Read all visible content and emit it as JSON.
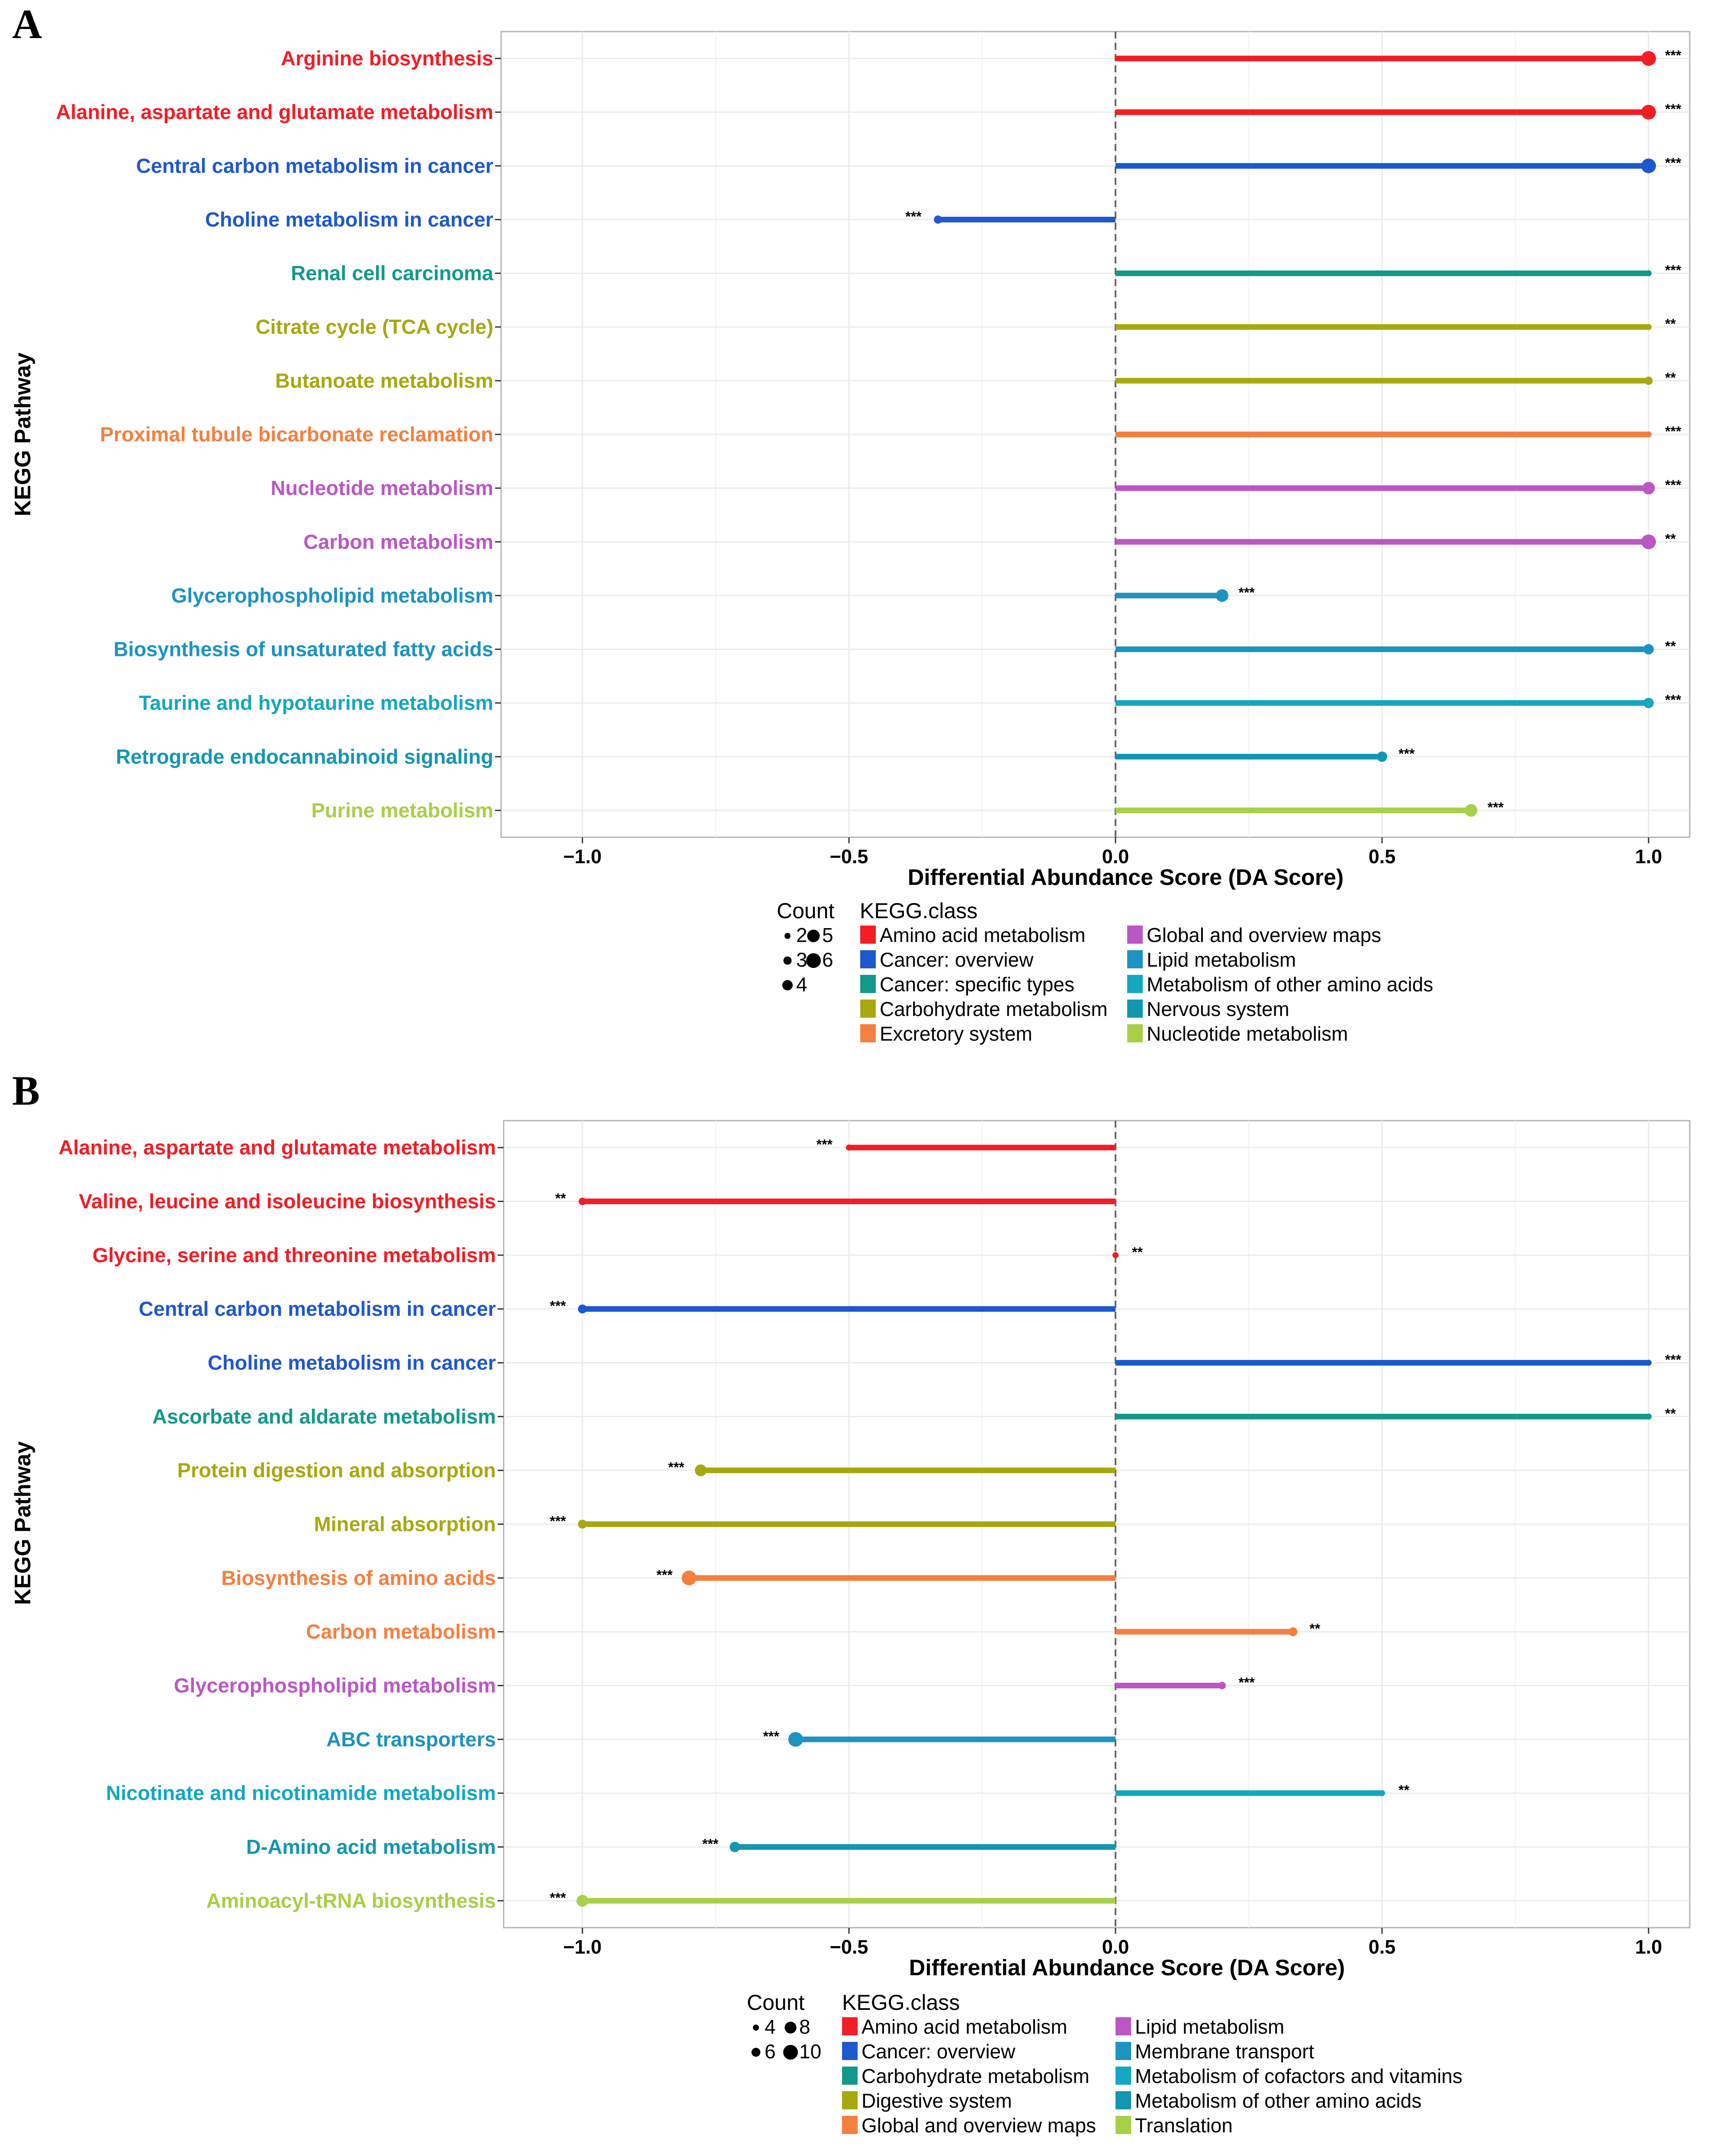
{
  "chart_data": [
    {
      "type": "lollipop",
      "panel": "A",
      "xlabel": "Differential Abundance Score (DA Score)",
      "ylabel": "KEGG Pathway",
      "xlim": [
        -1.15,
        1.15
      ],
      "xticks": [
        -1.0,
        -0.5,
        0.0,
        0.5,
        1.0
      ],
      "xtick_labels": [
        "−1.0",
        "−0.5",
        "0.0",
        "0.5",
        "1.0"
      ],
      "grid": true,
      "rows": [
        {
          "label": "Arginine biosynthesis",
          "value": 1.0,
          "count": 6,
          "sig": "***",
          "class": "Amino acid metabolism"
        },
        {
          "label": "Alanine, aspartate and glutamate metabolism",
          "value": 1.0,
          "count": 6,
          "sig": "***",
          "class": "Amino acid metabolism"
        },
        {
          "label": "Central carbon metabolism in cancer",
          "value": 1.0,
          "count": 6,
          "sig": "***",
          "class": "Cancer: overview"
        },
        {
          "label": "Choline metabolism in cancer",
          "value": -0.333,
          "count": 3,
          "sig": "***",
          "class": "Cancer: overview"
        },
        {
          "label": "Renal cell carcinoma",
          "value": 1.0,
          "count": 2,
          "sig": "***",
          "class": "Cancer: specific types"
        },
        {
          "label": "Citrate cycle (TCA cycle)",
          "value": 1.0,
          "count": 2,
          "sig": "**",
          "class": "Carbohydrate metabolism"
        },
        {
          "label": "Butanoate metabolism",
          "value": 1.0,
          "count": 3,
          "sig": "**",
          "class": "Carbohydrate metabolism"
        },
        {
          "label": "Proximal tubule bicarbonate reclamation",
          "value": 1.0,
          "count": 2,
          "sig": "***",
          "class": "Excretory system"
        },
        {
          "label": "Nucleotide metabolism",
          "value": 1.0,
          "count": 5,
          "sig": "***",
          "class": "Global and overview maps"
        },
        {
          "label": "Carbon metabolism",
          "value": 1.0,
          "count": 6,
          "sig": "**",
          "class": "Global and overview maps"
        },
        {
          "label": "Glycerophospholipid metabolism",
          "value": 0.2,
          "count": 5,
          "sig": "***",
          "class": "Lipid metabolism"
        },
        {
          "label": "Biosynthesis of unsaturated fatty acids",
          "value": 1.0,
          "count": 4,
          "sig": "**",
          "class": "Lipid metabolism"
        },
        {
          "label": "Taurine and hypotaurine metabolism",
          "value": 1.0,
          "count": 4,
          "sig": "***",
          "class": "Metabolism of other amino acids"
        },
        {
          "label": "Retrograde endocannabinoid signaling",
          "value": 0.5,
          "count": 4,
          "sig": "***",
          "class": "Nervous system"
        },
        {
          "label": "Purine metabolism",
          "value": 0.667,
          "count": 5,
          "sig": "***",
          "class": "Nucleotide metabolism"
        }
      ],
      "legend": {
        "count_title": "Count",
        "count_items": [
          {
            "label": "2",
            "size": 2
          },
          {
            "label": "3",
            "size": 3
          },
          {
            "label": "4",
            "size": 4
          },
          {
            "label": "5",
            "size": 5
          },
          {
            "label": "6",
            "size": 6
          }
        ],
        "class_title": "KEGG.class",
        "class_items": [
          {
            "label": "Amino acid metabolism",
            "color": "#f21d25"
          },
          {
            "label": "Cancer: overview",
            "color": "#1e58cf"
          },
          {
            "label": "Cancer: specific types",
            "color": "#12998a"
          },
          {
            "label": "Carbohydrate metabolism",
            "color": "#a7a80f"
          },
          {
            "label": "Excretory system",
            "color": "#f57f3f"
          },
          {
            "label": "Global and overview maps",
            "color": "#bb56c5"
          },
          {
            "label": "Lipid metabolism",
            "color": "#1c93c0"
          },
          {
            "label": "Metabolism of other amino acids",
            "color": "#13a7c0"
          },
          {
            "label": "Nervous system",
            "color": "#1396b0"
          },
          {
            "label": "Nucleotide metabolism",
            "color": "#a8cf48"
          }
        ]
      }
    },
    {
      "type": "lollipop",
      "panel": "B",
      "xlabel": "Differential Abundance Score (DA Score)",
      "ylabel": "KEGG Pathway",
      "xlim": [
        -1.15,
        1.15
      ],
      "xticks": [
        -1.0,
        -0.5,
        0.0,
        0.5,
        1.0
      ],
      "xtick_labels": [
        "−1.0",
        "−0.5",
        "0.0",
        "0.5",
        "1.0"
      ],
      "grid": true,
      "rows": [
        {
          "label": "Alanine, aspartate and glutamate metabolism",
          "value": -0.5,
          "count": 4,
          "sig": "***",
          "class": "Amino acid metabolism"
        },
        {
          "label": "Valine, leucine and isoleucine biosynthesis",
          "value": -1.0,
          "count": 5,
          "sig": "**",
          "class": "Amino acid metabolism"
        },
        {
          "label": "Glycine, serine and threonine metabolism",
          "value": 0.0,
          "count": 4,
          "sig": "**",
          "class": "Amino acid metabolism"
        },
        {
          "label": "Central carbon metabolism in cancer",
          "value": -1.0,
          "count": 6,
          "sig": "***",
          "class": "Cancer: overview"
        },
        {
          "label": "Choline metabolism in cancer",
          "value": 1.0,
          "count": 4,
          "sig": "***",
          "class": "Cancer: overview"
        },
        {
          "label": "Ascorbate and aldarate metabolism",
          "value": 1.0,
          "count": 4,
          "sig": "**",
          "class": "Carbohydrate metabolism"
        },
        {
          "label": "Protein digestion and absorption",
          "value": -0.778,
          "count": 8,
          "sig": "***",
          "class": "Digestive system"
        },
        {
          "label": "Mineral absorption",
          "value": -1.0,
          "count": 6,
          "sig": "***",
          "class": "Digestive system"
        },
        {
          "label": "Biosynthesis of amino acids",
          "value": -0.8,
          "count": 10,
          "sig": "***",
          "class": "Global and overview maps"
        },
        {
          "label": "Carbon metabolism",
          "value": 0.333,
          "count": 6,
          "sig": "**",
          "class": "Global and overview maps"
        },
        {
          "label": "Glycerophospholipid metabolism",
          "value": 0.2,
          "count": 5,
          "sig": "***",
          "class": "Lipid metabolism"
        },
        {
          "label": "ABC transporters",
          "value": -0.6,
          "count": 10,
          "sig": "***",
          "class": "Membrane transport"
        },
        {
          "label": "Nicotinate and nicotinamide metabolism",
          "value": 0.5,
          "count": 4,
          "sig": "**",
          "class": "Metabolism of cofactors and vitamins"
        },
        {
          "label": "D-Amino acid metabolism",
          "value": -0.714,
          "count": 7,
          "sig": "***",
          "class": "Metabolism of other amino acids"
        },
        {
          "label": "Aminoacyl-tRNA biosynthesis",
          "value": -1.0,
          "count": 8,
          "sig": "***",
          "class": "Translation"
        }
      ],
      "legend": {
        "count_title": "Count",
        "count_items": [
          {
            "label": "4",
            "size": 4
          },
          {
            "label": "6",
            "size": 6
          },
          {
            "label": "8",
            "size": 8
          },
          {
            "label": "10",
            "size": 10
          }
        ],
        "class_title": "KEGG.class",
        "class_items": [
          {
            "label": "Amino acid metabolism",
            "color": "#f21d25"
          },
          {
            "label": "Cancer: overview",
            "color": "#1e58cf"
          },
          {
            "label": "Carbohydrate metabolism",
            "color": "#12998a"
          },
          {
            "label": "Digestive system",
            "color": "#a7a80f"
          },
          {
            "label": "Global and overview maps",
            "color": "#f57f3f"
          },
          {
            "label": "Lipid metabolism",
            "color": "#bb56c5"
          },
          {
            "label": "Membrane transport",
            "color": "#1c93c0"
          },
          {
            "label": "Metabolism of cofactors and vitamins",
            "color": "#13a7c0"
          },
          {
            "label": "Metabolism of other amino acids",
            "color": "#1396b0"
          },
          {
            "label": "Translation",
            "color": "#a8cf48"
          }
        ]
      }
    }
  ]
}
